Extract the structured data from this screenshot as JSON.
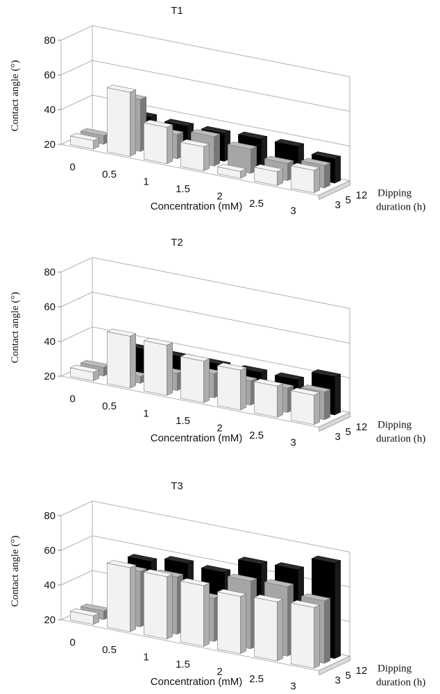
{
  "chart_data": [
    {
      "type": "bar3d",
      "title": "T1",
      "xlabel": "Concentration (mM)",
      "ylabel": "Contact angle (°)",
      "zlabel": "Dipping duration (h)",
      "zlabel_lines": [
        "Dipping",
        "duration (h)"
      ],
      "ylim": [
        20,
        80
      ],
      "yticks": [
        "20",
        "40",
        "60",
        "80"
      ],
      "categories": [
        "0",
        "0.5",
        "1",
        "1.5",
        "2",
        "2.5",
        "3"
      ],
      "depth_labels": [
        "3",
        "5",
        "12"
      ],
      "series": [
        {
          "name": "3",
          "color": "#f2f2f2",
          "values": [
            25,
            57,
            41,
            34,
            24,
            28,
            33
          ]
        },
        {
          "name": "5",
          "color": "#a6a6a6",
          "values": [
            25,
            50,
            34,
            37,
            34,
            30,
            33
          ]
        },
        {
          "name": "12",
          "color": "#000000",
          "values": [
            null,
            37,
            36,
            36,
            37,
            37,
            34
          ]
        }
      ]
    },
    {
      "type": "bar3d",
      "title": "T2",
      "xlabel": "Concentration (mM)",
      "ylabel": "Contact angle (°)",
      "zlabel": "Dipping duration (h)",
      "zlabel_lines": [
        "Dipping",
        "duration (h)"
      ],
      "ylim": [
        20,
        80
      ],
      "yticks": [
        "20",
        "40",
        "60",
        "80"
      ],
      "categories": [
        "0",
        "0.5",
        "1",
        "1.5",
        "2",
        "2.5",
        "3"
      ],
      "depth_labels": [
        "3",
        "5",
        "12"
      ],
      "series": [
        {
          "name": "3",
          "color": "#f2f2f2",
          "values": [
            25,
            50,
            49,
            44,
            43,
            38,
            37
          ]
        },
        {
          "name": "5",
          "color": "#a6a6a6",
          "values": [
            25,
            24,
            30,
            34,
            34,
            34,
            36
          ]
        },
        {
          "name": "12",
          "color": "#000000",
          "values": [
            null,
            36,
            36,
            36,
            36,
            36,
            42
          ]
        }
      ]
    },
    {
      "type": "bar3d",
      "title": "T3",
      "xlabel": "Concentration (mM)",
      "ylabel": "Contact angle (°)",
      "zlabel": "Dipping duration (h)",
      "zlabel_lines": [
        "Dipping",
        "duration (h)"
      ],
      "ylim": [
        20,
        80
      ],
      "yticks": [
        "20",
        "40",
        "60",
        "80"
      ],
      "categories": [
        "0",
        "0.5",
        "1",
        "1.5",
        "2",
        "2.5",
        "3"
      ],
      "depth_labels": [
        "3",
        "5",
        "12"
      ],
      "series": [
        {
          "name": "3",
          "color": "#f2f2f2",
          "values": [
            25,
            57,
            56,
            55,
            53,
            54,
            55
          ]
        },
        {
          "name": "5",
          "color": "#a6a6a6",
          "values": [
            25,
            52,
            53,
            45,
            59,
            60,
            56
          ]
        },
        {
          "name": "12",
          "color": "#000000",
          "values": [
            null,
            55,
            58,
            57,
            66,
            67,
            75
          ]
        }
      ]
    }
  ]
}
